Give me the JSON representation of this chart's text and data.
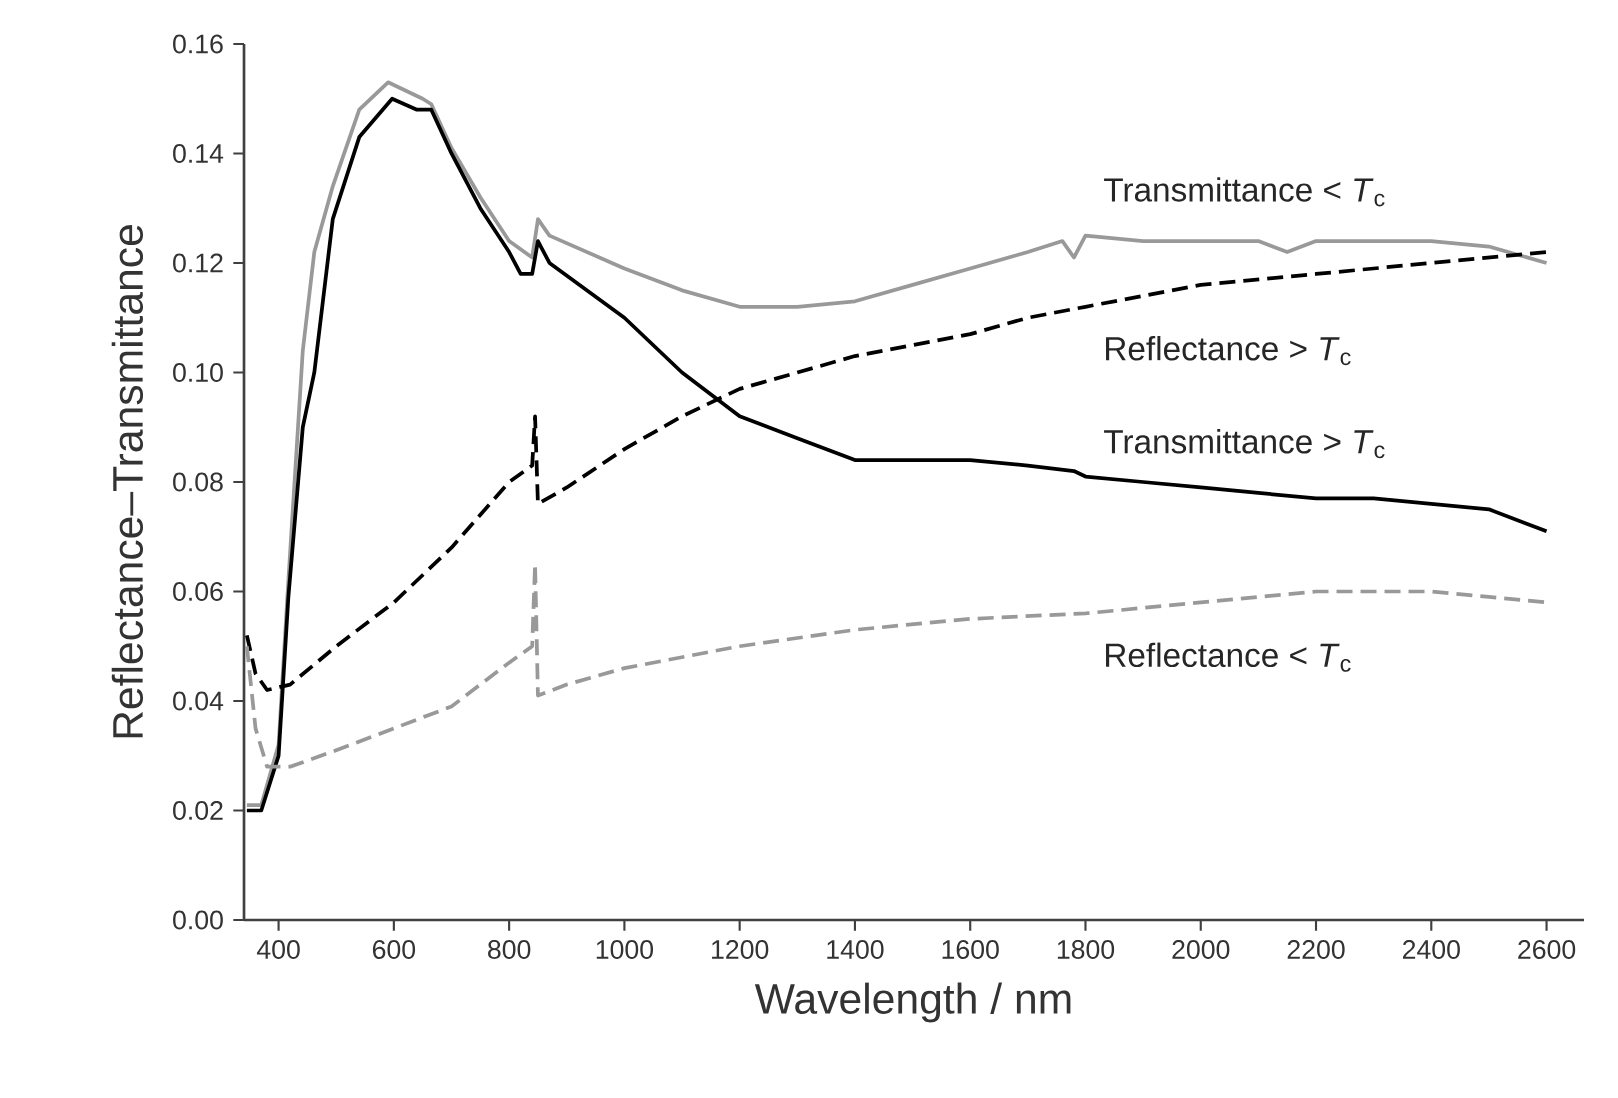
{
  "chart_data": {
    "type": "line",
    "xlabel": "Wavelength / nm",
    "ylabel": "Reflectance–Transmittance",
    "xlim": [
      340,
      2665
    ],
    "ylim": [
      0,
      0.16
    ],
    "xticks": [
      400,
      600,
      800,
      1000,
      1200,
      1400,
      1600,
      1800,
      2000,
      2200,
      2400,
      2600
    ],
    "yticks": [
      {
        "value": 0,
        "label": "0.00"
      },
      {
        "value": 0.02,
        "label": "0.02"
      },
      {
        "value": 0.04,
        "label": "0.04"
      },
      {
        "value": 0.06,
        "label": "0.06"
      },
      {
        "value": 0.08,
        "label": "0.08"
      },
      {
        "value": 0.1,
        "label": "0.10"
      },
      {
        "value": 0.12,
        "label": "0.12"
      },
      {
        "value": 0.14,
        "label": "0.14"
      },
      {
        "value": 0.16,
        "label": "0.16"
      }
    ],
    "grid": false,
    "legend": false,
    "marker": "none",
    "series": [
      {
        "name": "Transmittance < *T*$_{c}$",
        "color": "#999999",
        "line_style": "solid",
        "x": [
          345,
          370,
          400,
          417,
          442,
          462,
          494,
          540,
          590,
          650,
          665,
          700,
          750,
          800,
          840,
          850,
          870,
          1000,
          1100,
          1200,
          1300,
          1400,
          1500,
          1600,
          1700,
          1760,
          1780,
          1800,
          1900,
          2000,
          2100,
          2150,
          2200,
          2300,
          2400,
          2500,
          2600
        ],
        "values": [
          0.021,
          0.021,
          0.032,
          0.062,
          0.104,
          0.122,
          0.134,
          0.148,
          0.153,
          0.15,
          0.149,
          0.141,
          0.132,
          0.124,
          0.121,
          0.128,
          0.125,
          0.119,
          0.115,
          0.112,
          0.112,
          0.113,
          0.116,
          0.119,
          0.122,
          0.124,
          0.121,
          0.125,
          0.124,
          0.124,
          0.124,
          0.122,
          0.124,
          0.124,
          0.124,
          0.123,
          0.12
        ]
      },
      {
        "name": "Reflectance > *T*$_{c}$",
        "color": "#000000",
        "line_style": "dashed",
        "x": [
          345,
          360,
          380,
          420,
          500,
          600,
          700,
          800,
          840,
          845,
          850,
          900,
          1000,
          1100,
          1200,
          1300,
          1400,
          1600,
          1700,
          1800,
          1900,
          2000,
          2200,
          2400,
          2500,
          2600
        ],
        "values": [
          0.052,
          0.045,
          0.042,
          0.043,
          0.05,
          0.058,
          0.068,
          0.08,
          0.083,
          0.092,
          0.076,
          0.079,
          0.086,
          0.092,
          0.097,
          0.1,
          0.103,
          0.107,
          0.11,
          0.112,
          0.114,
          0.116,
          0.118,
          0.12,
          0.121,
          0.122
        ]
      },
      {
        "name": "Transmittance > *T*$_{c}$",
        "color": "#000000",
        "line_style": "solid",
        "x": [
          345,
          370,
          400,
          417,
          442,
          462,
          494,
          540,
          597,
          640,
          665,
          700,
          750,
          800,
          820,
          840,
          850,
          870,
          1000,
          1100,
          1200,
          1300,
          1400,
          1600,
          1700,
          1780,
          1800,
          1900,
          2000,
          2100,
          2200,
          2300,
          2400,
          2500,
          2600
        ],
        "values": [
          0.02,
          0.02,
          0.03,
          0.059,
          0.09,
          0.1,
          0.128,
          0.143,
          0.15,
          0.148,
          0.148,
          0.14,
          0.13,
          0.122,
          0.118,
          0.118,
          0.124,
          0.12,
          0.11,
          0.1,
          0.092,
          0.088,
          0.084,
          0.084,
          0.083,
          0.082,
          0.081,
          0.08,
          0.079,
          0.078,
          0.077,
          0.077,
          0.076,
          0.075,
          0.071
        ]
      },
      {
        "name": "Reflectance < *T*$_{c}$",
        "color": "#999999",
        "line_style": "dashed",
        "x": [
          345,
          360,
          380,
          420,
          500,
          600,
          700,
          800,
          840,
          845,
          850,
          900,
          1000,
          1200,
          1400,
          1600,
          1800,
          2000,
          2200,
          2400,
          2500,
          2600
        ],
        "values": [
          0.05,
          0.035,
          0.028,
          0.028,
          0.031,
          0.035,
          0.039,
          0.047,
          0.05,
          0.065,
          0.041,
          0.043,
          0.046,
          0.05,
          0.053,
          0.055,
          0.056,
          0.058,
          0.06,
          0.06,
          0.059,
          0.058
        ]
      }
    ]
  }
}
